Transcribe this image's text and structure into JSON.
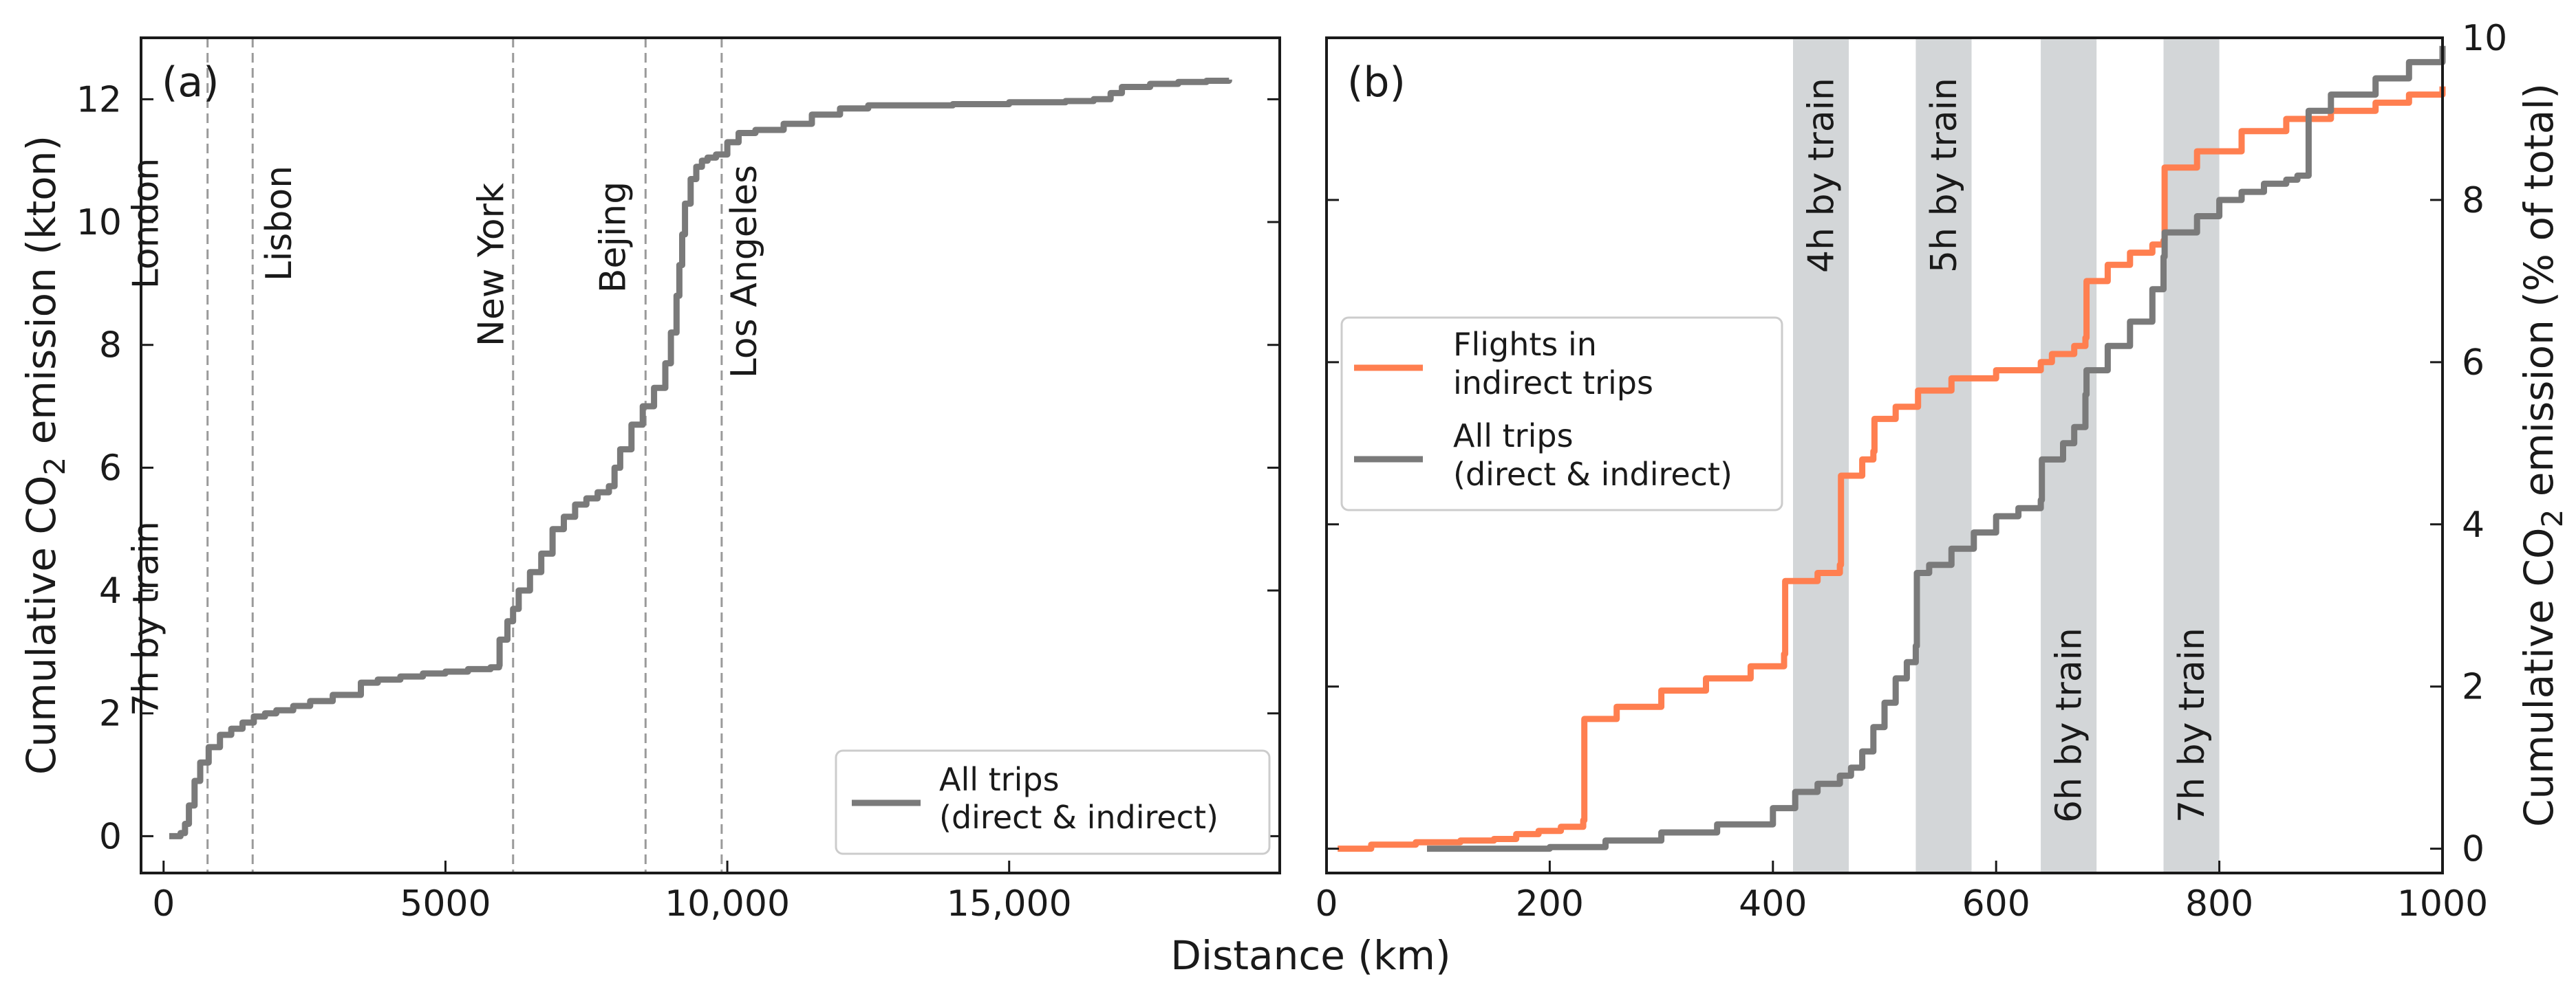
{
  "chart_data": [
    {
      "type": "line",
      "panel_label": "(a)",
      "xlabel": "Distance (km)",
      "ylabel_prefix": "Cumulative CO",
      "ylabel_sub": "2",
      "ylabel_suffix": " emission (kton)",
      "xlim": [
        -400,
        19800
      ],
      "ylim": [
        -0.6,
        13
      ],
      "xticks": [
        0,
        5000,
        10000,
        15000
      ],
      "xtick_labels": [
        "0",
        "5000",
        "10,000",
        "15,000"
      ],
      "yticks": [
        0,
        2,
        4,
        6,
        8,
        10,
        12
      ],
      "ytick_labels": [
        "0",
        "2",
        "4",
        "6",
        "8",
        "10",
        "12"
      ],
      "reference_lines": [
        {
          "x": 780,
          "label": "London"
        },
        {
          "x": 780,
          "label": "7h by train"
        },
        {
          "x": 1580,
          "label": "Lisbon"
        },
        {
          "x": 6200,
          "label": "New York"
        },
        {
          "x": 8550,
          "label": "Bejing"
        },
        {
          "x": 9900,
          "label": "Los Angeles"
        }
      ],
      "legend": {
        "position": "bottom-right",
        "entries": [
          {
            "label_line1": "All trips",
            "label_line2": "(direct & indirect)",
            "color": "#7a7a7a"
          }
        ]
      },
      "series": [
        {
          "name": "All trips (direct & indirect)",
          "color": "#7a7a7a",
          "x": [
            100,
            300,
            380,
            450,
            550,
            650,
            800,
            1000,
            1200,
            1400,
            1600,
            1800,
            2000,
            2300,
            2600,
            3000,
            3500,
            3800,
            4200,
            4600,
            5000,
            5400,
            5800,
            5950,
            5960,
            6100,
            6200,
            6300,
            6500,
            6700,
            6900,
            7100,
            7300,
            7500,
            7700,
            7900,
            8000,
            8100,
            8300,
            8500,
            8700,
            8900,
            9000,
            9100,
            9150,
            9200,
            9250,
            9350,
            9450,
            9550,
            9650,
            9800,
            10000,
            10200,
            10500,
            11000,
            11500,
            12000,
            12500,
            13000,
            14000,
            15000,
            16000,
            16500,
            16800,
            17000,
            17500,
            18000,
            18500,
            18900
          ],
          "y": [
            0,
            0.05,
            0.2,
            0.5,
            0.9,
            1.2,
            1.45,
            1.65,
            1.75,
            1.85,
            1.95,
            2.0,
            2.05,
            2.12,
            2.2,
            2.3,
            2.5,
            2.55,
            2.6,
            2.65,
            2.68,
            2.72,
            2.75,
            2.78,
            3.2,
            3.5,
            3.7,
            4.0,
            4.3,
            4.6,
            5.0,
            5.2,
            5.4,
            5.5,
            5.6,
            5.7,
            6.0,
            6.3,
            6.7,
            7.0,
            7.3,
            7.7,
            8.2,
            8.8,
            9.3,
            9.8,
            10.3,
            10.7,
            10.9,
            11.0,
            11.05,
            11.1,
            11.3,
            11.45,
            11.5,
            11.6,
            11.75,
            11.85,
            11.9,
            11.9,
            11.92,
            11.95,
            11.97,
            12.0,
            12.1,
            12.2,
            12.25,
            12.28,
            12.3,
            12.32
          ]
        }
      ]
    },
    {
      "type": "line",
      "panel_label": "(b)",
      "xlabel": "",
      "ylabel_prefix": "Cumulative CO",
      "ylabel_sub": "2",
      "ylabel_suffix": " emission (% of total)",
      "xlim": [
        0,
        1000
      ],
      "ylim": [
        -0.3,
        10
      ],
      "xticks": [
        0,
        200,
        400,
        600,
        800,
        1000
      ],
      "xtick_labels": [
        "0",
        "200",
        "400",
        "600",
        "800",
        "1000"
      ],
      "yticks": [
        0,
        2,
        4,
        6,
        8,
        10
      ],
      "ytick_labels": [
        "0",
        "2",
        "4",
        "6",
        "8",
        "10"
      ],
      "bands": [
        {
          "x0": 418,
          "x1": 468,
          "label": "4h by train",
          "label_pos": "top"
        },
        {
          "x0": 528,
          "x1": 578,
          "label": "5h by train",
          "label_pos": "top"
        },
        {
          "x0": 640,
          "x1": 690,
          "label": "6h by train",
          "label_pos": "bottom"
        },
        {
          "x0": 750,
          "x1": 800,
          "label": "7h by train",
          "label_pos": "bottom"
        }
      ],
      "legend": {
        "position": "center-left",
        "entries": [
          {
            "label_line1": "Flights in",
            "label_line2": "indirect trips",
            "color": "#ff7f50"
          },
          {
            "label_line1": "All trips",
            "label_line2": "(direct & indirect)",
            "color": "#7a7a7a"
          }
        ]
      },
      "series": [
        {
          "name": "Flights in indirect trips",
          "color": "#ff7f50",
          "x": [
            10,
            40,
            80,
            120,
            150,
            170,
            190,
            210,
            230,
            231,
            260,
            300,
            340,
            380,
            410,
            411,
            440,
            460,
            461,
            480,
            490,
            491,
            510,
            530,
            560,
            600,
            640,
            650,
            670,
            680,
            681,
            700,
            720,
            740,
            750,
            751,
            780,
            820,
            860,
            900,
            940,
            970,
            1000
          ],
          "y": [
            0,
            0.05,
            0.08,
            0.1,
            0.12,
            0.18,
            0.22,
            0.27,
            0.35,
            1.6,
            1.75,
            1.95,
            2.1,
            2.25,
            2.4,
            3.3,
            3.4,
            3.5,
            4.6,
            4.8,
            4.9,
            5.3,
            5.45,
            5.65,
            5.8,
            5.9,
            6.0,
            6.1,
            6.2,
            6.3,
            7.0,
            7.2,
            7.35,
            7.45,
            7.5,
            8.4,
            8.6,
            8.85,
            9.0,
            9.1,
            9.2,
            9.3,
            9.4
          ]
        },
        {
          "name": "All trips (direct & indirect)",
          "color": "#7a7a7a",
          "x": [
            90,
            150,
            200,
            250,
            300,
            350,
            400,
            420,
            440,
            460,
            470,
            480,
            490,
            500,
            510,
            520,
            528,
            529,
            540,
            560,
            580,
            600,
            620,
            640,
            641,
            660,
            670,
            680,
            681,
            700,
            720,
            740,
            750,
            751,
            780,
            800,
            820,
            840,
            860,
            870,
            880,
            900,
            940,
            970,
            1000
          ],
          "y": [
            0,
            0,
            0.02,
            0.1,
            0.2,
            0.3,
            0.5,
            0.7,
            0.8,
            0.9,
            1.0,
            1.2,
            1.5,
            1.8,
            2.1,
            2.3,
            2.5,
            3.4,
            3.5,
            3.7,
            3.9,
            4.1,
            4.2,
            4.3,
            4.8,
            5.0,
            5.2,
            5.6,
            5.9,
            6.2,
            6.5,
            6.9,
            7.3,
            7.6,
            7.8,
            8.0,
            8.1,
            8.2,
            8.25,
            8.3,
            9.1,
            9.3,
            9.5,
            9.7,
            9.9
          ]
        }
      ]
    }
  ]
}
